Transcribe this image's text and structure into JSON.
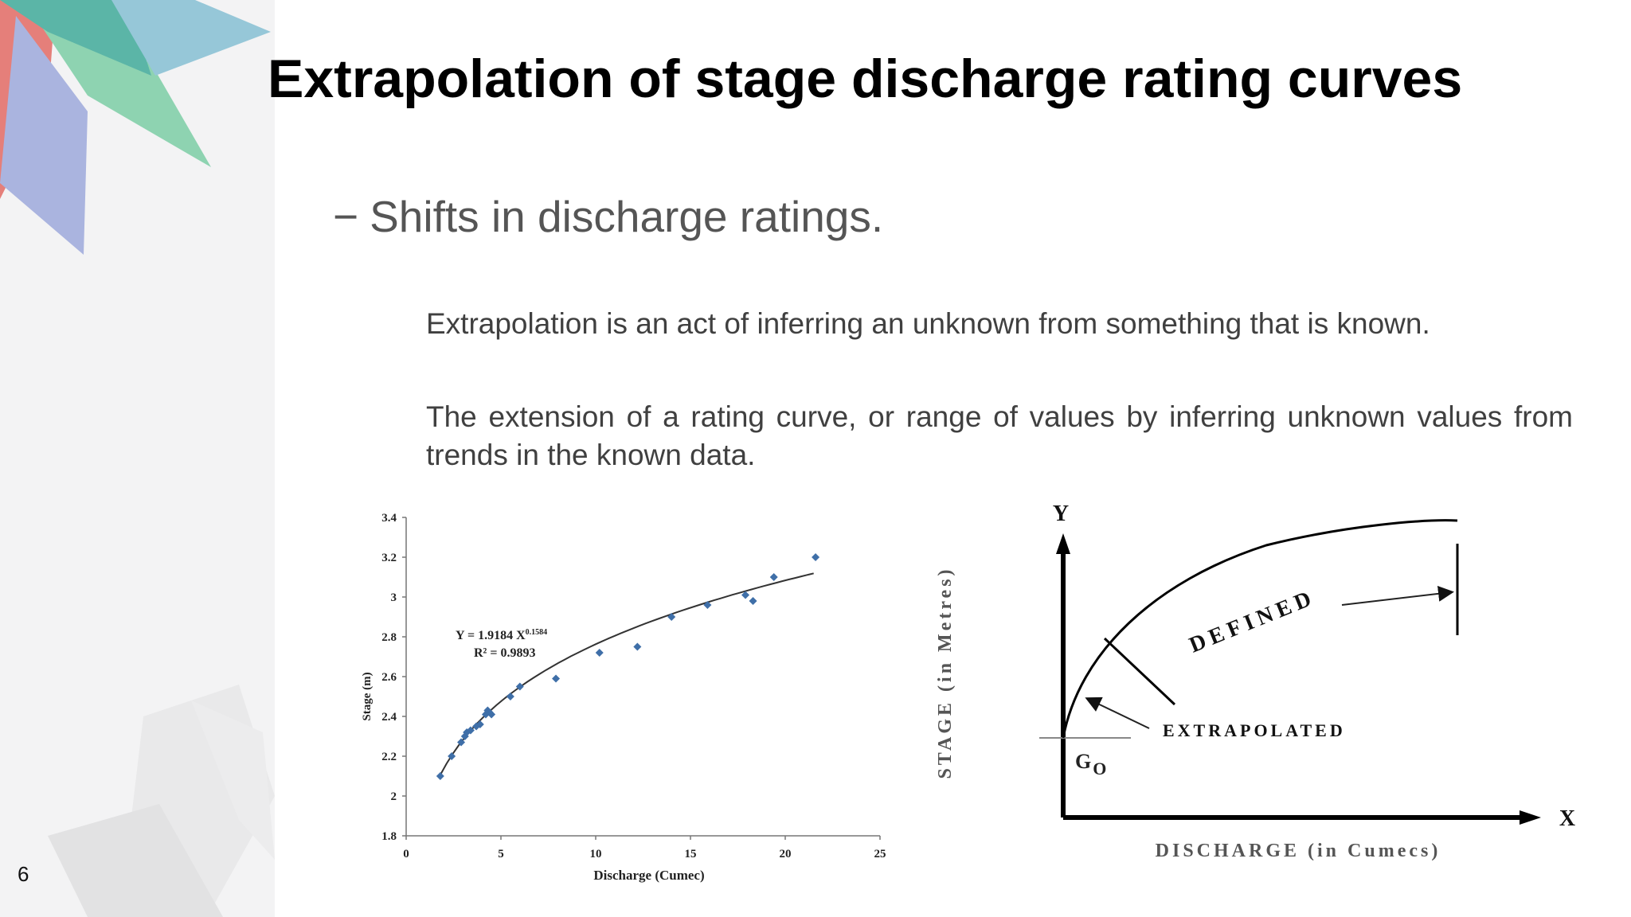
{
  "slide": {
    "number": "6",
    "title": "Extrapolation of stage discharge rating curves",
    "bullet_dash": "−",
    "bullet": "Shifts in discharge ratings.",
    "paragraph1": "Extrapolation is an act of inferring an unknown from something that is known.",
    "paragraph2": "The extension of a rating curve, or range of values by inferring unknown values from trends in the known data."
  },
  "chart_data": [
    {
      "type": "scatter",
      "xlabel": "Discharge (Cumec)",
      "ylabel": "Stage (m)",
      "xlim": [
        0,
        25
      ],
      "ylim": [
        1.8,
        3.4
      ],
      "x_ticks": [
        "0",
        "5",
        "10",
        "15",
        "20",
        "25"
      ],
      "y_ticks": [
        "1.8",
        "2",
        "2.2",
        "2.4",
        "2.6",
        "2.8",
        "3",
        "3.2",
        "3.4"
      ],
      "equation": "Y = 1.9184 X",
      "equation_exponent": "0.1584",
      "r_squared": "R² = 0.9893",
      "trendline": {
        "a": 1.9184,
        "b": 0.1584,
        "x_start": 1.8,
        "x_end": 21.5
      },
      "points": [
        {
          "x": 1.8,
          "y": 2.1
        },
        {
          "x": 2.4,
          "y": 2.2
        },
        {
          "x": 2.9,
          "y": 2.27
        },
        {
          "x": 3.1,
          "y": 2.3
        },
        {
          "x": 3.2,
          "y": 2.32
        },
        {
          "x": 3.4,
          "y": 2.33
        },
        {
          "x": 3.7,
          "y": 2.35
        },
        {
          "x": 3.9,
          "y": 2.36
        },
        {
          "x": 4.2,
          "y": 2.41
        },
        {
          "x": 4.3,
          "y": 2.43
        },
        {
          "x": 4.4,
          "y": 2.42
        },
        {
          "x": 4.5,
          "y": 2.41
        },
        {
          "x": 5.5,
          "y": 2.5
        },
        {
          "x": 6.0,
          "y": 2.55
        },
        {
          "x": 7.9,
          "y": 2.59
        },
        {
          "x": 10.2,
          "y": 2.72
        },
        {
          "x": 12.2,
          "y": 2.75
        },
        {
          "x": 14.0,
          "y": 2.9
        },
        {
          "x": 15.9,
          "y": 2.96
        },
        {
          "x": 17.9,
          "y": 3.01
        },
        {
          "x": 18.3,
          "y": 2.98
        },
        {
          "x": 19.4,
          "y": 3.1
        },
        {
          "x": 21.6,
          "y": 3.2
        }
      ],
      "marker_color": "#3f6fa8"
    },
    {
      "type": "line",
      "ylabel": "STAGE (in Metres)",
      "xlabel": "DISCHARGE (in Cumecs)",
      "x_axis_letter": "X",
      "y_axis_letter": "Y",
      "origin_label": "G",
      "origin_sub": "O",
      "defined_label": "DEFINED",
      "extrapolated_label": "EXTRAPOLATED"
    }
  ]
}
